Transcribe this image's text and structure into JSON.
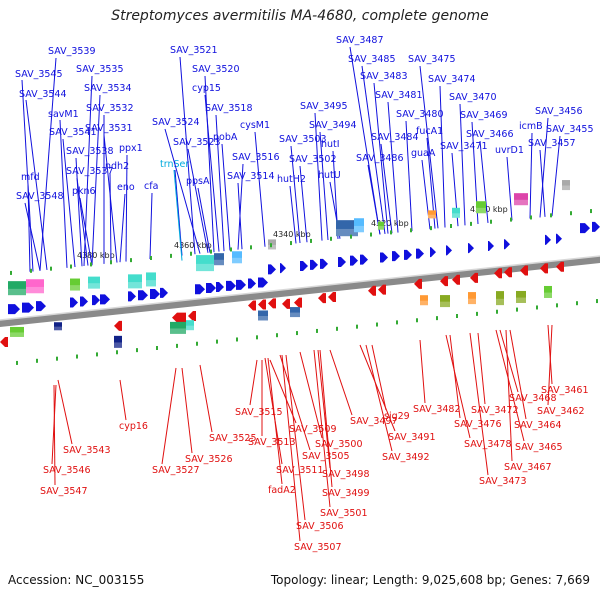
{
  "title": "Streptomyces avermitilis MA-4680, complete genome",
  "footer": {
    "accession": "Accession: NC_003155",
    "summary": "Topology: linear; Length: 9,025,608 bp; Genes: 7,669"
  },
  "colors": {
    "forward": "#1010dd",
    "reverse": "#e01010",
    "rna": "#00aadd",
    "backbone": "#888888"
  },
  "scale_ticks": [
    "4380 kbp",
    "4360 kbp",
    "4340 kbp",
    "4320 kbp",
    "4300 kbp"
  ],
  "forward_genes": [
    "SAV_3539",
    "SAV_3545",
    "SAV_3535",
    "SAV_3544",
    "SAV_3534",
    "savM1",
    "SAV_3532",
    "SAV_3541",
    "SAV_3531",
    "ppx1",
    "SAV_3538",
    "ndh2",
    "SAV_3537",
    "cfa",
    "mfd",
    "eno",
    "pkn6",
    "SAV_3548",
    "SAV_3521",
    "SAV_3520",
    "cyp15",
    "SAV_3518",
    "SAV_3524",
    "SAV_3523",
    "pobA",
    "SAV_3516",
    "ppsA",
    "SAV_3514",
    "trnSer",
    "cysM1",
    "SAV_3503",
    "SAV_3502",
    "hutH2",
    "SAV_3495",
    "SAV_3494",
    "hutI",
    "hutU",
    "SAV_3487",
    "SAV_3485",
    "SAV_3475",
    "SAV_3483",
    "SAV_3474",
    "SAV_3481",
    "SAV_3470",
    "SAV_3480",
    "SAV_3469",
    "fucA1",
    "SAV_3484",
    "guaA",
    "SAV_3486",
    "SAV_3471",
    "SAV_3466",
    "uvrD1",
    "SAV_3456",
    "icmB",
    "SAV_3455",
    "SAV_3457"
  ],
  "reverse_genes": [
    "SAV_3543",
    "cyp16",
    "SAV_3546",
    "SAV_3547",
    "SAV_3515",
    "SAV_3509",
    "SAV_3525",
    "SAV_3513",
    "SAV_3527",
    "SAV_3526",
    "SAV_3505",
    "SAV_3511",
    "fadA2",
    "SAV_3506",
    "SAV_3507",
    "SAV_3497",
    "SAV_3500",
    "SAV_3498",
    "SAV_3499",
    "SAV_3501",
    "sig29",
    "SAV_3491",
    "SAV_3492",
    "SAV_3482",
    "SAV_3476",
    "SAV_3478",
    "SAV_3473",
    "SAV_3468",
    "SAV_3472",
    "SAV_3464",
    "SAV_3467",
    "SAV_3465",
    "SAV_3461",
    "SAV_3462"
  ]
}
